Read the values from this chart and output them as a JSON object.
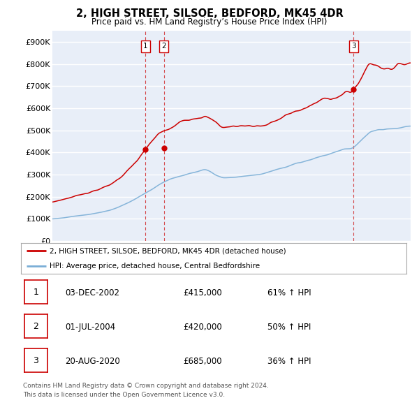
{
  "title": "2, HIGH STREET, SILSOE, BEDFORD, MK45 4DR",
  "subtitle": "Price paid vs. HM Land Registry’s House Price Index (HPI)",
  "ylim": [
    0,
    950000
  ],
  "yticks": [
    0,
    100000,
    200000,
    300000,
    400000,
    500000,
    600000,
    700000,
    800000,
    900000
  ],
  "ytick_labels": [
    "£0",
    "£100K",
    "£200K",
    "£300K",
    "£400K",
    "£500K",
    "£600K",
    "£700K",
    "£800K",
    "£900K"
  ],
  "plot_bg_color": "#e8eef8",
  "grid_color": "#ffffff",
  "red_line_color": "#cc0000",
  "blue_line_color": "#7aaed6",
  "sale_points": [
    {
      "label": "1",
      "price": 415000,
      "x_year": 2002.92
    },
    {
      "label": "2",
      "price": 420000,
      "x_year": 2004.5
    },
    {
      "label": "3",
      "price": 685000,
      "x_year": 2020.63
    }
  ],
  "legend_entries": [
    {
      "color": "#cc0000",
      "label": "2, HIGH STREET, SILSOE, BEDFORD, MK45 4DR (detached house)"
    },
    {
      "color": "#7aaed6",
      "label": "HPI: Average price, detached house, Central Bedfordshire"
    }
  ],
  "table_rows": [
    {
      "num": "1",
      "date": "03-DEC-2002",
      "price": "£415,000",
      "hpi": "61% ↑ HPI"
    },
    {
      "num": "2",
      "date": "01-JUL-2004",
      "price": "£420,000",
      "hpi": "50% ↑ HPI"
    },
    {
      "num": "3",
      "date": "20-AUG-2020",
      "price": "£685,000",
      "hpi": "36% ↑ HPI"
    }
  ],
  "footer": [
    "Contains HM Land Registry data © Crown copyright and database right 2024.",
    "This data is licensed under the Open Government Licence v3.0."
  ],
  "xmin": 1995.0,
  "xmax": 2025.5
}
